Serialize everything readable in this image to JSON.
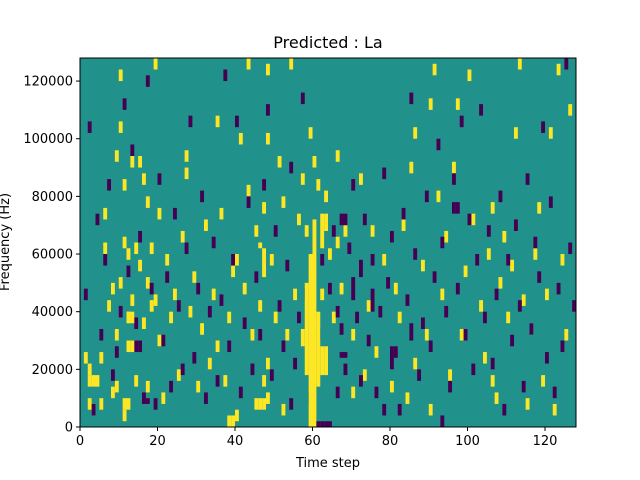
{
  "chart_data": {
    "type": "heatmap",
    "title": "Predicted : La",
    "xlabel": "Time step",
    "ylabel": "Frequency (Hz)",
    "xlim": [
      0,
      128
    ],
    "ylim": [
      0,
      128000
    ],
    "x_ticks": [
      0,
      20,
      40,
      60,
      80,
      100,
      120
    ],
    "y_ticks": [
      0,
      20000,
      40000,
      60000,
      80000,
      100000,
      120000
    ],
    "grid": false,
    "n_time_steps": 128,
    "n_freq_bins": 64,
    "bin_hz": 2000,
    "colors": {
      "background": "#21918c",
      "high": "#fde725",
      "low": "#440154"
    },
    "cells": [
      {
        "t": 59,
        "f0": 0,
        "f1": 60000,
        "v": "high"
      },
      {
        "t": 60,
        "f0": 0,
        "f1": 72000,
        "v": "high"
      },
      {
        "t": 61,
        "f0": 14000,
        "f1": 40000,
        "v": "high"
      },
      {
        "t": 62,
        "f0": 62000,
        "f1": 74000,
        "v": "high"
      },
      {
        "t": 63,
        "f0": 68000,
        "f1": 74000,
        "v": "high"
      },
      {
        "t": 62,
        "f0": 18000,
        "f1": 28000,
        "v": "high"
      },
      {
        "t": 63,
        "f0": 18000,
        "f1": 28000,
        "v": "high"
      },
      {
        "t": 58,
        "f0": 18000,
        "f1": 50000,
        "v": "high"
      },
      {
        "t": 57,
        "f0": 28000,
        "f1": 34000,
        "v": "high"
      },
      {
        "t": 61,
        "f0": 0,
        "f1": 2000,
        "v": "low"
      },
      {
        "t": 62,
        "f0": 0,
        "f1": 2000,
        "v": "low"
      },
      {
        "t": 63,
        "f0": 0,
        "f1": 2000,
        "v": "low"
      },
      {
        "t": 64,
        "f0": 0,
        "f1": 2000,
        "v": "low"
      },
      {
        "t": 67,
        "f0": 70000,
        "f1": 74000,
        "v": "low"
      },
      {
        "t": 68,
        "f0": 70000,
        "f1": 74000,
        "v": "low"
      },
      {
        "t": 67,
        "f0": 24000,
        "f1": 26000,
        "v": "low"
      },
      {
        "t": 68,
        "f0": 24000,
        "f1": 26000,
        "v": "low"
      },
      {
        "t": 66,
        "f0": 38000,
        "f1": 42000,
        "v": "low"
      },
      {
        "t": 70,
        "f0": 44000,
        "f1": 52000,
        "v": "low"
      },
      {
        "t": 72,
        "f0": 52000,
        "f1": 58000,
        "v": "low"
      },
      {
        "t": 75,
        "f0": 40000,
        "f1": 48000,
        "v": "low"
      },
      {
        "t": 78,
        "f0": 4000,
        "f1": 8000,
        "v": "low"
      },
      {
        "t": 80,
        "f0": 20000,
        "f1": 28000,
        "v": "low"
      },
      {
        "t": 85,
        "f0": 30000,
        "f1": 36000,
        "v": "low"
      },
      {
        "t": 14,
        "f0": 26000,
        "f1": 30000,
        "v": "low"
      },
      {
        "t": 15,
        "f0": 26000,
        "f1": 30000,
        "v": "low"
      },
      {
        "t": 12,
        "f0": 26000,
        "f1": 30000,
        "v": "high"
      },
      {
        "t": 13,
        "f0": 26000,
        "f1": 30000,
        "v": "high"
      },
      {
        "t": 12,
        "f0": 36000,
        "f1": 40000,
        "v": "high"
      },
      {
        "t": 13,
        "f0": 36000,
        "f1": 40000,
        "v": "high"
      },
      {
        "t": 1,
        "f0": 22000,
        "f1": 26000,
        "v": "high"
      },
      {
        "t": 2,
        "f0": 14000,
        "f1": 18000,
        "v": "high"
      },
      {
        "t": 3,
        "f0": 14000,
        "f1": 18000,
        "v": "high"
      },
      {
        "t": 11,
        "f0": 6000,
        "f1": 10000,
        "v": "high"
      },
      {
        "t": 12,
        "f0": 6000,
        "f1": 10000,
        "v": "high"
      },
      {
        "t": 16,
        "f0": 8000,
        "f1": 10000,
        "v": "low"
      },
      {
        "t": 17,
        "f0": 8000,
        "f1": 10000,
        "v": "low"
      },
      {
        "t": 38,
        "f0": 0,
        "f1": 4000,
        "v": "high"
      },
      {
        "t": 39,
        "f0": 0,
        "f1": 4000,
        "v": "high"
      },
      {
        "t": 45,
        "f0": 6000,
        "f1": 10000,
        "v": "high"
      },
      {
        "t": 46,
        "f0": 6000,
        "f1": 10000,
        "v": "high"
      },
      {
        "t": 47,
        "f0": 6000,
        "f1": 10000,
        "v": "high"
      },
      {
        "t": 48,
        "f0": 8000,
        "f1": 12000,
        "v": "high"
      },
      {
        "t": 47,
        "f0": 52000,
        "f1": 62000,
        "v": "high"
      },
      {
        "t": 46,
        "f0": 62000,
        "f1": 64000,
        "v": "high"
      },
      {
        "t": 93,
        "f0": 0,
        "f1": 4000,
        "v": "low"
      },
      {
        "t": 96,
        "f0": 74000,
        "f1": 78000,
        "v": "low"
      },
      {
        "t": 97,
        "f0": 74000,
        "f1": 78000,
        "v": "low"
      },
      {
        "t": 54,
        "f0": 6000,
        "f1": 10000,
        "v": "low"
      }
    ],
    "high_points": [
      [
        2,
        6000
      ],
      [
        2,
        18000
      ],
      [
        3,
        4000
      ],
      [
        4,
        14000
      ],
      [
        5,
        6000
      ],
      [
        5,
        22000
      ],
      [
        6,
        60000
      ],
      [
        6,
        72000
      ],
      [
        7,
        40000
      ],
      [
        8,
        10000
      ],
      [
        8,
        46000
      ],
      [
        9,
        12000
      ],
      [
        9,
        30000
      ],
      [
        9,
        92000
      ],
      [
        10,
        48000
      ],
      [
        10,
        102000
      ],
      [
        10,
        120000
      ],
      [
        11,
        2000
      ],
      [
        11,
        62000
      ],
      [
        11,
        82000
      ],
      [
        12,
        36000
      ],
      [
        12,
        58000
      ],
      [
        13,
        42000
      ],
      [
        13,
        90000
      ],
      [
        14,
        14000
      ],
      [
        14,
        60000
      ],
      [
        15,
        54000
      ],
      [
        15,
        90000
      ],
      [
        16,
        34000
      ],
      [
        16,
        84000
      ],
      [
        17,
        12000
      ],
      [
        17,
        48000
      ],
      [
        17,
        76000
      ],
      [
        18,
        40000
      ],
      [
        18,
        60000
      ],
      [
        19,
        124000
      ],
      [
        19,
        42000
      ],
      [
        20,
        72000
      ],
      [
        20,
        28000
      ],
      [
        21,
        8000
      ],
      [
        22,
        56000
      ],
      [
        23,
        36000
      ],
      [
        24,
        44000
      ],
      [
        25,
        16000
      ],
      [
        26,
        64000
      ],
      [
        27,
        86000
      ],
      [
        27,
        92000
      ],
      [
        28,
        38000
      ],
      [
        29,
        50000
      ],
      [
        30,
        12000
      ],
      [
        31,
        32000
      ],
      [
        32,
        68000
      ],
      [
        33,
        20000
      ],
      [
        34,
        44000
      ],
      [
        35,
        26000
      ],
      [
        35,
        104000
      ],
      [
        36,
        72000
      ],
      [
        37,
        14000
      ],
      [
        38,
        36000
      ],
      [
        39,
        52000
      ],
      [
        40,
        2000
      ],
      [
        40,
        56000
      ],
      [
        41,
        98000
      ],
      [
        42,
        46000
      ],
      [
        43,
        80000
      ],
      [
        43,
        124000
      ],
      [
        44,
        30000
      ],
      [
        45,
        66000
      ],
      [
        46,
        40000
      ],
      [
        47,
        14000
      ],
      [
        47,
        74000
      ],
      [
        48,
        98000
      ],
      [
        48,
        20000
      ],
      [
        48,
        122000
      ],
      [
        49,
        56000
      ],
      [
        50,
        36000
      ],
      [
        51,
        90000
      ],
      [
        52,
        76000
      ],
      [
        52,
        4000
      ],
      [
        53,
        30000
      ],
      [
        54,
        124000
      ],
      [
        55,
        44000
      ],
      [
        56,
        70000
      ],
      [
        57,
        84000
      ],
      [
        58,
        66000
      ],
      [
        59,
        100000
      ],
      [
        60,
        90000
      ],
      [
        61,
        82000
      ],
      [
        62,
        44000
      ],
      [
        63,
        78000
      ],
      [
        64,
        58000
      ],
      [
        65,
        36000
      ],
      [
        66,
        62000
      ],
      [
        66,
        92000
      ],
      [
        67,
        46000
      ],
      [
        68,
        66000
      ],
      [
        70,
        10000
      ],
      [
        70,
        30000
      ],
      [
        72,
        84000
      ],
      [
        73,
        16000
      ],
      [
        74,
        40000
      ],
      [
        75,
        66000
      ],
      [
        76,
        24000
      ],
      [
        78,
        56000
      ],
      [
        80,
        12000
      ],
      [
        81,
        46000
      ],
      [
        82,
        36000
      ],
      [
        83,
        68000
      ],
      [
        84,
        8000
      ],
      [
        85,
        88000
      ],
      [
        86,
        20000
      ],
      [
        86,
        100000
      ],
      [
        88,
        54000
      ],
      [
        89,
        30000
      ],
      [
        90,
        110000
      ],
      [
        90,
        4000
      ],
      [
        91,
        122000
      ],
      [
        92,
        78000
      ],
      [
        93,
        44000
      ],
      [
        94,
        64000
      ],
      [
        95,
        16000
      ],
      [
        96,
        88000
      ],
      [
        97,
        110000
      ],
      [
        98,
        30000
      ],
      [
        99,
        52000
      ],
      [
        100,
        120000
      ],
      [
        101,
        70000
      ],
      [
        103,
        40000
      ],
      [
        104,
        22000
      ],
      [
        105,
        58000
      ],
      [
        106,
        14000
      ],
      [
        106,
        74000
      ],
      [
        107,
        8000
      ],
      [
        108,
        48000
      ],
      [
        109,
        64000
      ],
      [
        110,
        36000
      ],
      [
        111,
        54000
      ],
      [
        112,
        100000
      ],
      [
        113,
        124000
      ],
      [
        114,
        42000
      ],
      [
        115,
        6000
      ],
      [
        116,
        32000
      ],
      [
        117,
        58000
      ],
      [
        118,
        74000
      ],
      [
        119,
        14000
      ],
      [
        120,
        44000
      ],
      [
        121,
        100000
      ],
      [
        122,
        4000
      ],
      [
        123,
        122000
      ],
      [
        124,
        56000
      ],
      [
        125,
        30000
      ],
      [
        126,
        108000
      ]
    ],
    "low_points": [
      [
        1,
        44000
      ],
      [
        2,
        102000
      ],
      [
        3,
        4000
      ],
      [
        4,
        70000
      ],
      [
        5,
        30000
      ],
      [
        6,
        56000
      ],
      [
        7,
        82000
      ],
      [
        8,
        16000
      ],
      [
        9,
        24000
      ],
      [
        10,
        38000
      ],
      [
        11,
        110000
      ],
      [
        12,
        52000
      ],
      [
        13,
        94000
      ],
      [
        14,
        34000
      ],
      [
        15,
        64000
      ],
      [
        16,
        8000
      ],
      [
        17,
        118000
      ],
      [
        18,
        46000
      ],
      [
        19,
        6000
      ],
      [
        20,
        84000
      ],
      [
        21,
        28000
      ],
      [
        22,
        50000
      ],
      [
        23,
        12000
      ],
      [
        24,
        72000
      ],
      [
        25,
        40000
      ],
      [
        26,
        18000
      ],
      [
        27,
        60000
      ],
      [
        28,
        104000
      ],
      [
        29,
        22000
      ],
      [
        30,
        46000
      ],
      [
        31,
        78000
      ],
      [
        32,
        8000
      ],
      [
        33,
        38000
      ],
      [
        34,
        62000
      ],
      [
        35,
        14000
      ],
      [
        36,
        42000
      ],
      [
        37,
        120000
      ],
      [
        38,
        26000
      ],
      [
        39,
        56000
      ],
      [
        40,
        104000
      ],
      [
        41,
        10000
      ],
      [
        42,
        34000
      ],
      [
        43,
        76000
      ],
      [
        44,
        18000
      ],
      [
        45,
        50000
      ],
      [
        46,
        30000
      ],
      [
        47,
        82000
      ],
      [
        48,
        108000
      ],
      [
        49,
        16000
      ],
      [
        50,
        66000
      ],
      [
        51,
        40000
      ],
      [
        52,
        26000
      ],
      [
        53,
        54000
      ],
      [
        54,
        88000
      ],
      [
        55,
        20000
      ],
      [
        56,
        36000
      ],
      [
        57,
        112000
      ],
      [
        58,
        44000
      ],
      [
        59,
        8000
      ],
      [
        61,
        30000
      ],
      [
        62,
        56000
      ],
      [
        64,
        46000
      ],
      [
        65,
        66000
      ],
      [
        66,
        10000
      ],
      [
        67,
        32000
      ],
      [
        68,
        18000
      ],
      [
        69,
        60000
      ],
      [
        70,
        82000
      ],
      [
        71,
        36000
      ],
      [
        72,
        14000
      ],
      [
        73,
        70000
      ],
      [
        74,
        28000
      ],
      [
        75,
        56000
      ],
      [
        76,
        10000
      ],
      [
        77,
        38000
      ],
      [
        78,
        86000
      ],
      [
        79,
        48000
      ],
      [
        80,
        64000
      ],
      [
        81,
        24000
      ],
      [
        82,
        4000
      ],
      [
        83,
        72000
      ],
      [
        84,
        42000
      ],
      [
        85,
        112000
      ],
      [
        86,
        58000
      ],
      [
        87,
        16000
      ],
      [
        88,
        34000
      ],
      [
        89,
        78000
      ],
      [
        90,
        26000
      ],
      [
        91,
        50000
      ],
      [
        92,
        96000
      ],
      [
        93,
        62000
      ],
      [
        94,
        38000
      ],
      [
        95,
        12000
      ],
      [
        96,
        84000
      ],
      [
        97,
        46000
      ],
      [
        98,
        104000
      ],
      [
        99,
        30000
      ],
      [
        100,
        70000
      ],
      [
        101,
        18000
      ],
      [
        102,
        56000
      ],
      [
        103,
        108000
      ],
      [
        104,
        36000
      ],
      [
        105,
        66000
      ],
      [
        106,
        20000
      ],
      [
        107,
        44000
      ],
      [
        108,
        78000
      ],
      [
        109,
        4000
      ],
      [
        110,
        56000
      ],
      [
        111,
        28000
      ],
      [
        112,
        68000
      ],
      [
        113,
        40000
      ],
      [
        114,
        12000
      ],
      [
        115,
        84000
      ],
      [
        116,
        32000
      ],
      [
        117,
        62000
      ],
      [
        118,
        50000
      ],
      [
        119,
        102000
      ],
      [
        120,
        22000
      ],
      [
        121,
        76000
      ],
      [
        122,
        10000
      ],
      [
        123,
        46000
      ],
      [
        124,
        26000
      ],
      [
        125,
        124000
      ],
      [
        126,
        60000
      ],
      [
        127,
        40000
      ]
    ]
  }
}
